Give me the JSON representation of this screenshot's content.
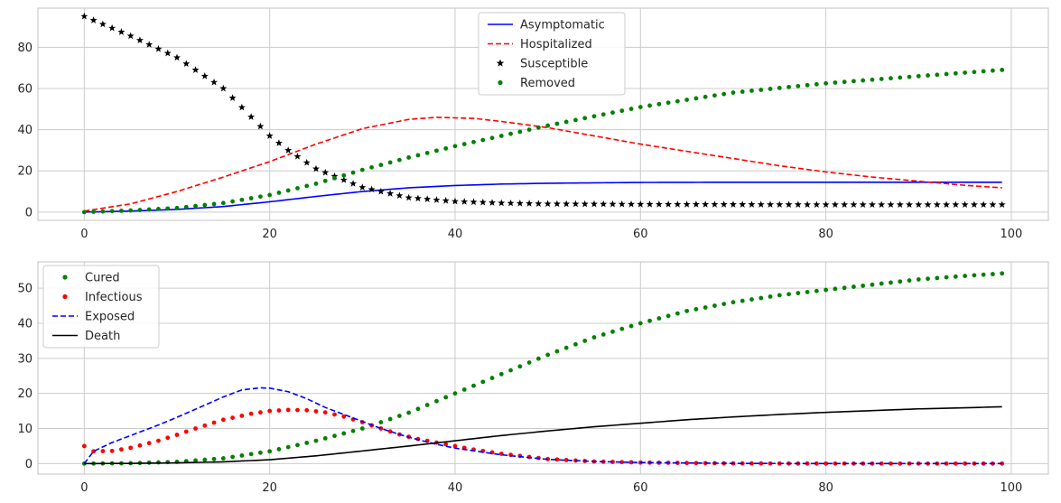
{
  "chart_data": [
    {
      "type": "line",
      "xlim": [
        -5,
        104
      ],
      "ylim": [
        -4,
        99
      ],
      "xticks": [
        0,
        20,
        40,
        60,
        80,
        100
      ],
      "yticks": [
        0,
        20,
        40,
        60,
        80
      ],
      "grid": true,
      "legend_position": "top-center",
      "series": [
        {
          "name": "Asymptomatic",
          "style": "solid",
          "color": "#0000ff",
          "x": [
            0,
            5,
            10,
            15,
            20,
            25,
            30,
            35,
            40,
            45,
            50,
            60,
            70,
            80,
            90,
            99
          ],
          "y": [
            0,
            0.5,
            1.3,
            2.7,
            5,
            7.6,
            10,
            11.8,
            12.9,
            13.6,
            14,
            14.4,
            14.5,
            14.5,
            14.5,
            14.5
          ]
        },
        {
          "name": "Hospitalized",
          "style": "dashed",
          "color": "#ff0000",
          "x": [
            0,
            5,
            10,
            15,
            20,
            25,
            30,
            35,
            38,
            42,
            45,
            50,
            55,
            60,
            65,
            70,
            75,
            80,
            85,
            90,
            95,
            99
          ],
          "y": [
            0.5,
            4,
            10,
            17,
            24.5,
            33,
            40.5,
            45,
            46,
            45.5,
            44,
            41,
            37,
            33,
            29.5,
            26,
            22.5,
            19.5,
            17,
            15,
            13,
            11.8
          ]
        },
        {
          "name": "Susceptible",
          "style": "star",
          "color": "#000000",
          "x": [
            0,
            5,
            10,
            15,
            20,
            22,
            25,
            30,
            35,
            40,
            45,
            50,
            60,
            70,
            80,
            90,
            99
          ],
          "y": [
            95,
            85.5,
            75,
            60,
            37,
            30,
            21,
            12,
            7,
            5.2,
            4.4,
            4,
            3.8,
            3.7,
            3.6,
            3.6,
            3.6
          ],
          "every": 1
        },
        {
          "name": "Removed",
          "style": "dot",
          "color": "#008000",
          "x": [
            0,
            5,
            10,
            15,
            20,
            25,
            30,
            35,
            40,
            45,
            50,
            55,
            60,
            70,
            80,
            90,
            99
          ],
          "y": [
            0,
            0.8,
            2,
            4.4,
            8.3,
            13.8,
            20.5,
            26.5,
            32,
            37,
            42,
            46.5,
            51,
            58,
            62.5,
            66,
            69
          ],
          "every": 1
        }
      ]
    },
    {
      "type": "line",
      "xlim": [
        -5,
        104
      ],
      "ylim": [
        -3,
        57.5
      ],
      "xticks": [
        0,
        20,
        40,
        60,
        80,
        100
      ],
      "yticks": [
        0,
        10,
        20,
        30,
        40,
        50
      ],
      "grid": true,
      "legend_position": "top-left",
      "series": [
        {
          "name": "Cured",
          "style": "dot",
          "color": "#008000",
          "x": [
            0,
            5,
            10,
            15,
            20,
            25,
            30,
            35,
            40,
            45,
            50,
            55,
            60,
            65,
            70,
            75,
            80,
            85,
            90,
            95,
            99
          ],
          "y": [
            0,
            0.1,
            0.5,
            1.5,
            3.5,
            6.5,
            10,
            14.5,
            20,
            25.5,
            31,
            36,
            40,
            43.5,
            46,
            48,
            49.5,
            51,
            52.5,
            53.5,
            54.2
          ],
          "every": 1
        },
        {
          "name": "Infectious",
          "style": "dot",
          "color": "#ff0000",
          "x": [
            0,
            1,
            3,
            5,
            8,
            10,
            12,
            15,
            18,
            20,
            22,
            24,
            26,
            28,
            30,
            32,
            34,
            36,
            38,
            40,
            42,
            45,
            50,
            55,
            60,
            70,
            80,
            90,
            99
          ],
          "y": [
            5,
            3.5,
            3.6,
            4.5,
            6.5,
            8.2,
            10,
            12.5,
            14.2,
            15,
            15.3,
            15.2,
            14.6,
            13.4,
            11.8,
            10,
            8.3,
            7,
            6,
            5,
            4,
            2.8,
            1.3,
            0.6,
            0.3,
            0.05,
            0,
            0,
            0
          ],
          "every": 1
        },
        {
          "name": "Exposed",
          "style": "dashed",
          "color": "#0000ff",
          "x": [
            0,
            1,
            3,
            5,
            8,
            10,
            12,
            15,
            17,
            19,
            20,
            22,
            24,
            26,
            28,
            30,
            32,
            35,
            38,
            40,
            45,
            50,
            55,
            60,
            70,
            80,
            90,
            99
          ],
          "y": [
            0,
            3.5,
            6,
            8,
            11,
            13.2,
            15.5,
            19,
            21,
            21.6,
            21.5,
            20.5,
            18.5,
            16,
            14,
            12,
            10,
            7.5,
            5.5,
            4.4,
            2.5,
            1.2,
            0.6,
            0.3,
            0.05,
            0,
            0,
            0
          ]
        },
        {
          "name": "Death",
          "style": "solid",
          "color": "#000000",
          "x": [
            0,
            5,
            10,
            15,
            20,
            25,
            30,
            35,
            40,
            45,
            50,
            55,
            60,
            65,
            70,
            75,
            80,
            85,
            90,
            95,
            99
          ],
          "y": [
            0,
            0.05,
            0.2,
            0.5,
            1.1,
            2.2,
            3.6,
            5,
            6.5,
            8,
            9.3,
            10.5,
            11.5,
            12.5,
            13.3,
            14,
            14.6,
            15.1,
            15.6,
            15.9,
            16.2
          ]
        }
      ]
    }
  ]
}
